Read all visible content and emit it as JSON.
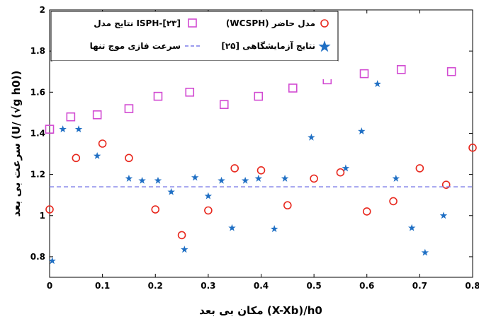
{
  "chart_data": {
    "type": "scatter",
    "xlabel": "مکان بی بعد (X-Xb)/h0",
    "ylabel": "سرعت بی بعد (U/ (√g h0))",
    "xlim": [
      0,
      0.8
    ],
    "ylim": [
      0.7,
      2.0
    ],
    "x_ticks": [
      "0",
      "0.1",
      "0.2",
      "0.3",
      "0.4",
      "0.5",
      "0.6",
      "0.7",
      "0.8"
    ],
    "y_ticks": [
      "0.8",
      "1",
      "1.2",
      "1.4",
      "1.6",
      "1.8",
      "2"
    ],
    "grid": false,
    "legend_position": "top",
    "series": [
      {
        "name": "نتایج مدل ISPH-[۲۳]",
        "marker": "square",
        "color": "#d24bd2",
        "points": [
          [
            0.0,
            1.42
          ],
          [
            0.04,
            1.48
          ],
          [
            0.09,
            1.49
          ],
          [
            0.15,
            1.52
          ],
          [
            0.205,
            1.58
          ],
          [
            0.265,
            1.6
          ],
          [
            0.33,
            1.54
          ],
          [
            0.395,
            1.58
          ],
          [
            0.46,
            1.62
          ],
          [
            0.525,
            1.66
          ],
          [
            0.595,
            1.69
          ],
          [
            0.665,
            1.71
          ],
          [
            0.76,
            1.7
          ]
        ]
      },
      {
        "name": "(WCSPH) مدل حاضر",
        "marker": "circle",
        "color": "#e8281e",
        "points": [
          [
            0.0,
            1.03
          ],
          [
            0.05,
            1.28
          ],
          [
            0.1,
            1.35
          ],
          [
            0.15,
            1.28
          ],
          [
            0.2,
            1.03
          ],
          [
            0.25,
            0.905
          ],
          [
            0.3,
            1.025
          ],
          [
            0.35,
            1.23
          ],
          [
            0.4,
            1.22
          ],
          [
            0.45,
            1.05
          ],
          [
            0.5,
            1.18
          ],
          [
            0.55,
            1.21
          ],
          [
            0.6,
            1.02
          ],
          [
            0.65,
            1.07
          ],
          [
            0.7,
            1.23
          ],
          [
            0.75,
            1.15
          ],
          [
            0.8,
            1.33
          ]
        ]
      },
      {
        "name": "سرعت فازی موج تنها",
        "marker": "dashed-line",
        "color": "#7b7be8",
        "y": 1.14
      },
      {
        "name": "نتایج آزمایشگاهی [۲۵]",
        "marker": "star",
        "color": "#1f6fc4",
        "points": [
          [
            0.005,
            0.78
          ],
          [
            0.025,
            1.42
          ],
          [
            0.055,
            1.42
          ],
          [
            0.09,
            1.29
          ],
          [
            0.15,
            1.18
          ],
          [
            0.175,
            1.17
          ],
          [
            0.205,
            1.17
          ],
          [
            0.23,
            1.115
          ],
          [
            0.255,
            0.835
          ],
          [
            0.275,
            1.185
          ],
          [
            0.3,
            1.095
          ],
          [
            0.325,
            1.17
          ],
          [
            0.345,
            0.94
          ],
          [
            0.37,
            1.17
          ],
          [
            0.395,
            1.18
          ],
          [
            0.425,
            0.935
          ],
          [
            0.445,
            1.18
          ],
          [
            0.495,
            1.38
          ],
          [
            0.56,
            1.23
          ],
          [
            0.59,
            1.41
          ],
          [
            0.62,
            1.64
          ],
          [
            0.655,
            1.18
          ],
          [
            0.685,
            0.94
          ],
          [
            0.71,
            0.82
          ],
          [
            0.745,
            1.0
          ]
        ]
      }
    ]
  }
}
